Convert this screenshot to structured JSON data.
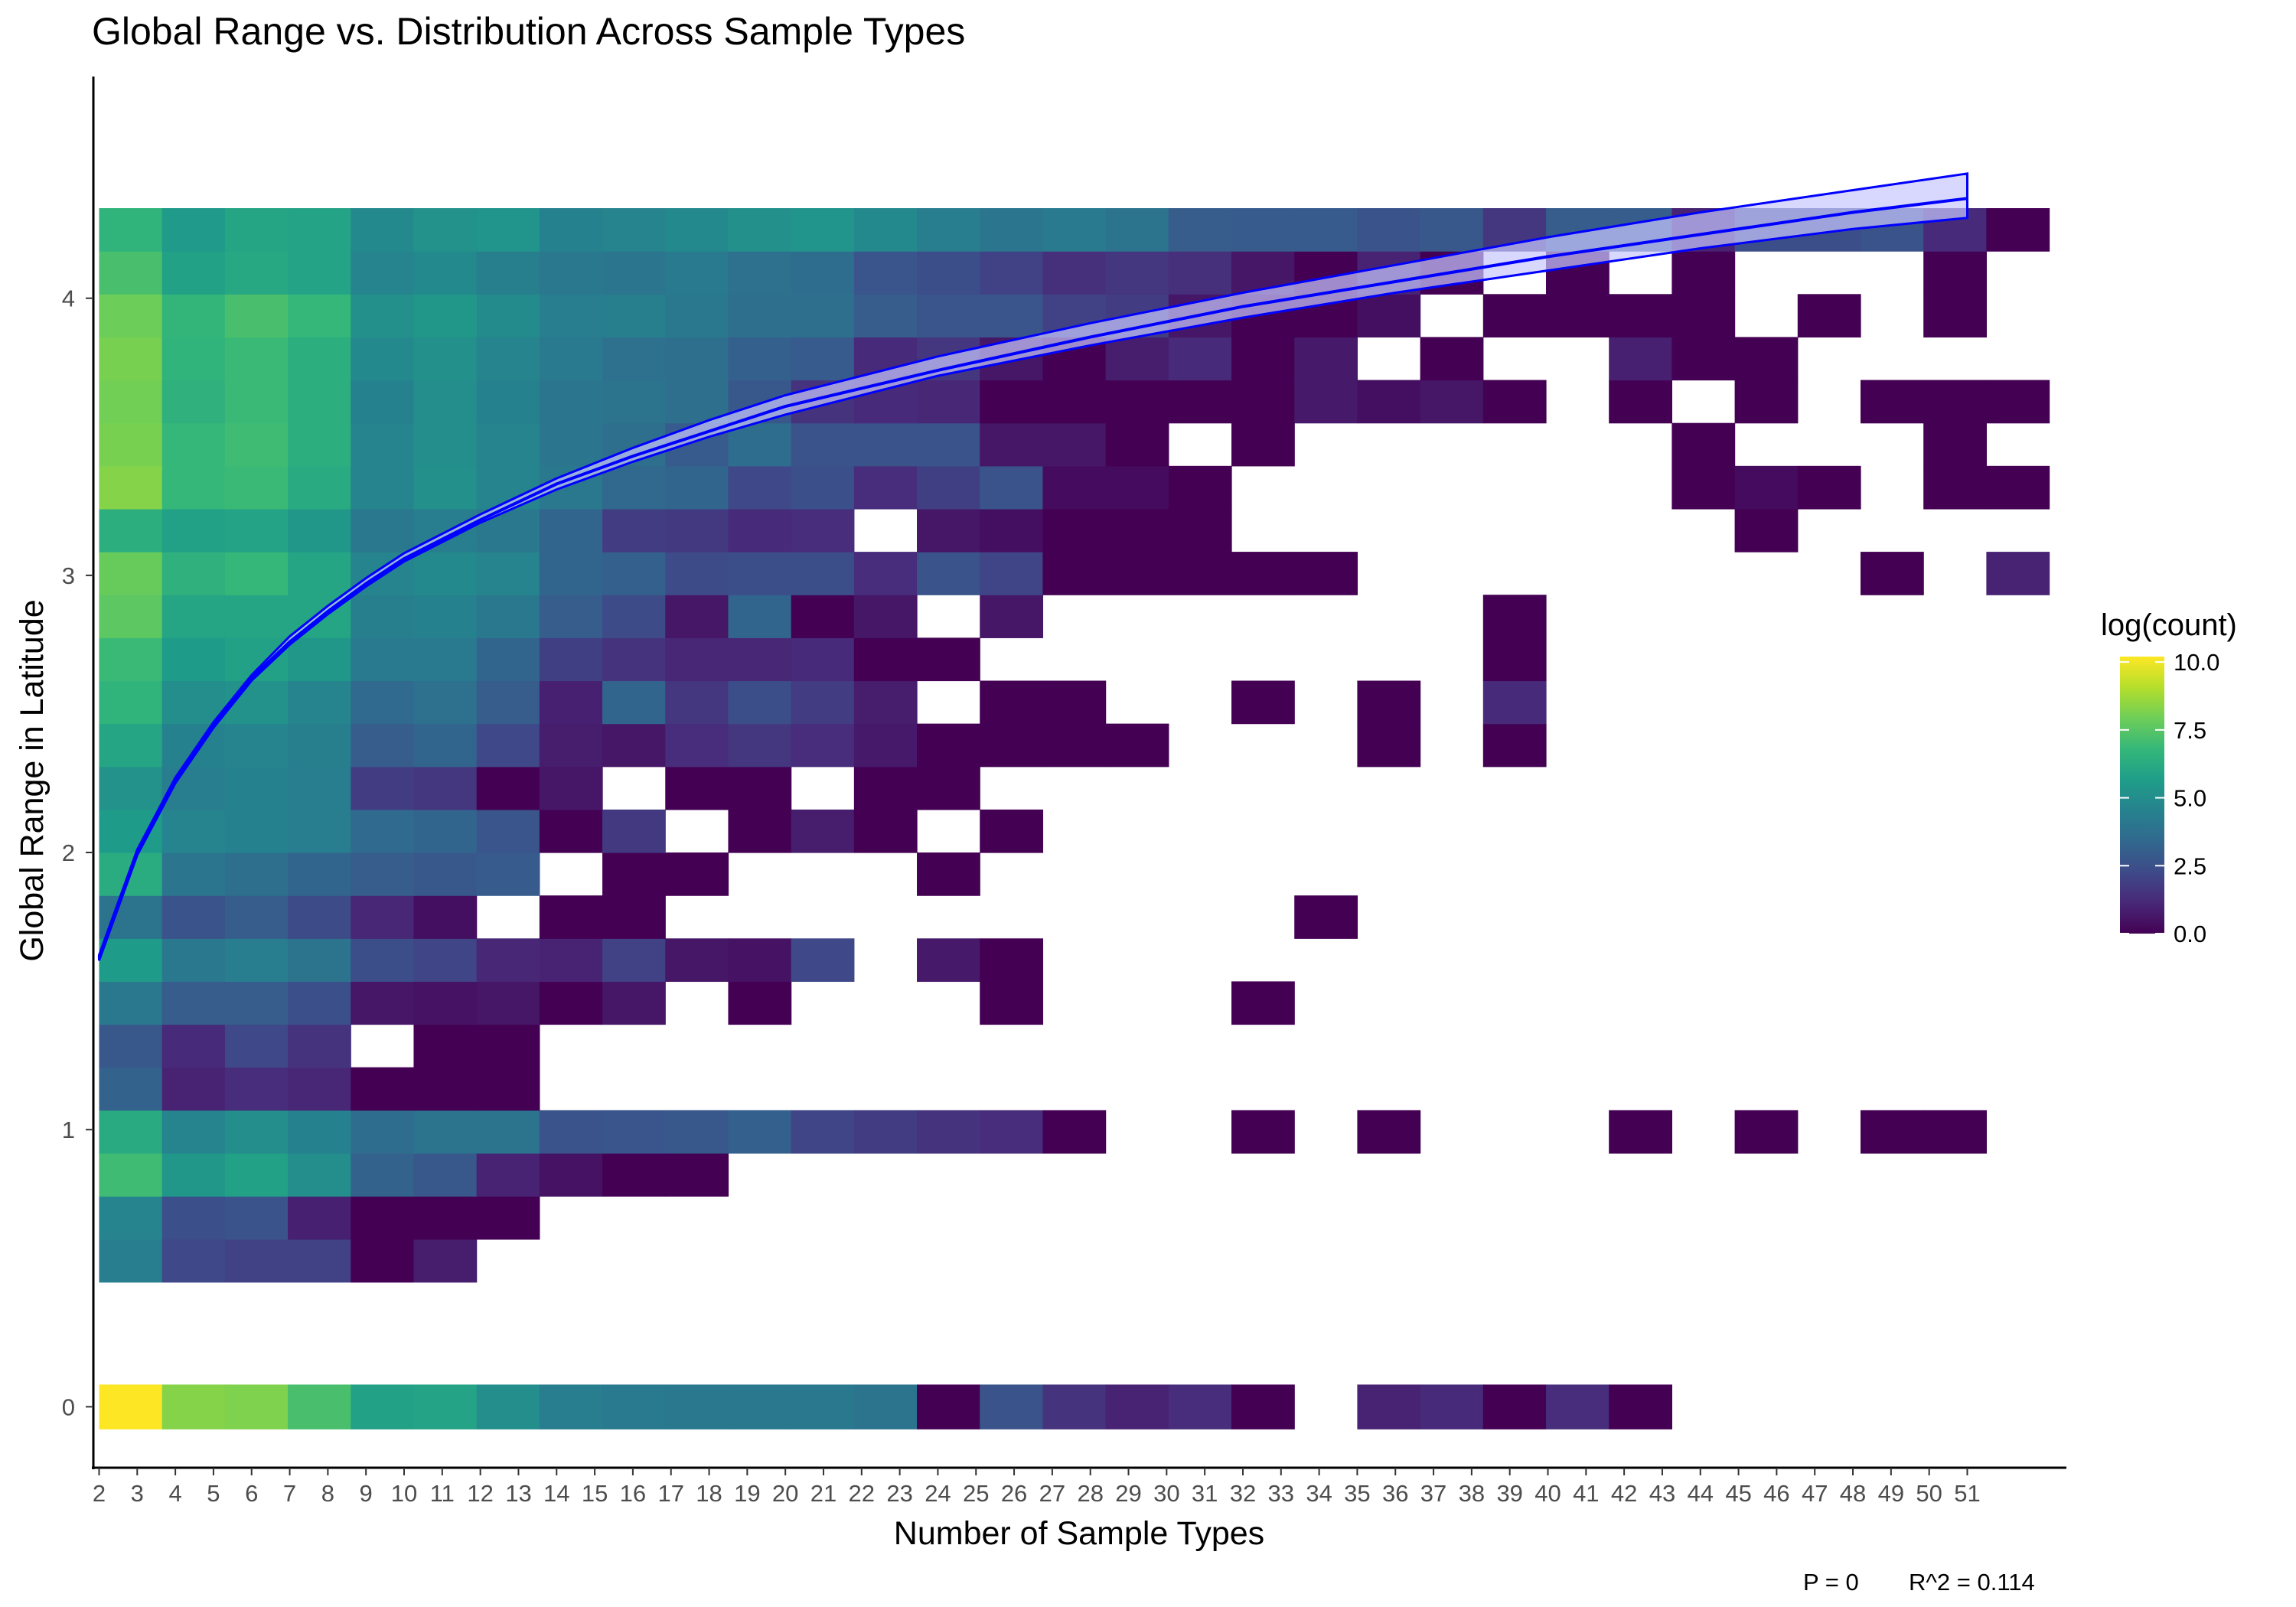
{
  "chart_data": {
    "type": "heatmap",
    "title": "Global Range vs. Distribution Across Sample Types",
    "xlabel": "Number of Sample Types",
    "ylabel": "Global Range in Latitude",
    "x_ticks": [
      2,
      3,
      4,
      5,
      6,
      7,
      8,
      9,
      10,
      11,
      12,
      13,
      14,
      15,
      16,
      17,
      18,
      19,
      20,
      21,
      22,
      23,
      24,
      25,
      26,
      27,
      28,
      29,
      30,
      31,
      32,
      33,
      34,
      35,
      36,
      37,
      38,
      39,
      40,
      41,
      42,
      43,
      44,
      45,
      46,
      47,
      48,
      49,
      50,
      51
    ],
    "y_ticks": [
      0,
      1,
      2,
      3,
      4
    ],
    "xlim": [
      1.85,
      53.6
    ],
    "ylim": [
      -0.22,
      4.8
    ],
    "x_bins": {
      "start": 2,
      "width": 1.65,
      "count": 31
    },
    "y_bins": {
      "start": 0.45,
      "width": 0.155,
      "count": 26,
      "extra_row": {
        "y0": -0.08,
        "y1": 0.08,
        "label": "zero-range bin"
      }
    },
    "color_scale": {
      "name": "viridis",
      "label": "log(count)",
      "min": 0,
      "max": 10.2,
      "ticks": [
        "0.0",
        "2.5",
        "5.0",
        "7.5",
        "10.0"
      ],
      "tick_values": [
        0,
        2.5,
        5.0,
        7.5,
        10.0
      ],
      "colors": [
        "#440154",
        "#482878",
        "#3e4a89",
        "#31688e",
        "#26828e",
        "#1f9e89",
        "#35b779",
        "#6ece58",
        "#b5de2b",
        "#fde725"
      ]
    },
    "grid": false,
    "legend": "right",
    "fit_line": {
      "model": "log",
      "color": "#0000ff",
      "ci_color": "#c8c8ff",
      "x": [
        2,
        3,
        4,
        5,
        6,
        7,
        8,
        9,
        10,
        12,
        14,
        16,
        18,
        20,
        24,
        28,
        32,
        36,
        40,
        44,
        48,
        51
      ],
      "y": [
        1.62,
        2.0,
        2.26,
        2.46,
        2.63,
        2.76,
        2.87,
        2.97,
        3.06,
        3.2,
        3.33,
        3.43,
        3.52,
        3.61,
        3.74,
        3.86,
        3.97,
        4.06,
        4.15,
        4.23,
        4.31,
        4.36
      ],
      "ci_low": [
        1.61,
        1.99,
        2.25,
        2.45,
        2.62,
        2.75,
        2.86,
        2.96,
        3.05,
        3.19,
        3.31,
        3.41,
        3.5,
        3.58,
        3.72,
        3.83,
        3.93,
        4.02,
        4.1,
        4.18,
        4.25,
        4.29
      ],
      "ci_high": [
        1.63,
        2.01,
        2.27,
        2.47,
        2.64,
        2.78,
        2.89,
        2.99,
        3.08,
        3.22,
        3.35,
        3.46,
        3.56,
        3.65,
        3.79,
        3.91,
        4.02,
        4.12,
        4.22,
        4.31,
        4.39,
        4.45
      ]
    },
    "rows": [
      [
        10.2,
        8.3,
        8.2,
        7.2,
        5.8,
        5.9,
        5.0,
        4.3,
        4.2,
        4.1,
        4.1,
        4.1,
        3.9,
        0.0,
        2.6,
        1.5,
        1.0,
        1.3,
        0.0,
        -1,
        1.0,
        1.2,
        0.0,
        1.3,
        0.0,
        -1,
        -1,
        -1,
        -1,
        -1,
        -1
      ],
      [
        4.3,
        2.2,
        2.0,
        2.0,
        0.0,
        0.8,
        -1,
        -1,
        -1,
        -1,
        -1,
        -1,
        -1,
        -1,
        -1,
        -1,
        -1,
        -1,
        -1,
        -1,
        -1,
        -1,
        -1,
        -1,
        -1,
        -1,
        -1,
        -1,
        -1,
        -1,
        -1
      ],
      [
        4.6,
        2.5,
        2.6,
        0.9,
        0.0,
        0.0,
        0.0,
        -1,
        -1,
        -1,
        -1,
        -1,
        -1,
        -1,
        -1,
        -1,
        -1,
        -1,
        -1,
        -1,
        -1,
        -1,
        -1,
        -1,
        -1,
        -1,
        -1,
        -1,
        -1,
        -1,
        -1
      ],
      [
        7.0,
        5.4,
        5.8,
        5.0,
        3.2,
        2.8,
        1.0,
        0.5,
        0.0,
        0.0,
        -1,
        -1,
        -1,
        -1,
        -1,
        -1,
        -1,
        -1,
        -1,
        -1,
        -1,
        -1,
        -1,
        -1,
        -1,
        -1,
        -1,
        -1,
        -1,
        -1,
        -1
      ],
      [
        6.2,
        4.6,
        5.0,
        4.5,
        3.6,
        3.9,
        3.9,
        2.6,
        2.7,
        2.8,
        3.1,
        2.1,
        1.8,
        1.5,
        1.3,
        0.0,
        -1,
        -1,
        0.0,
        -1,
        0.0,
        -1,
        -1,
        -1,
        0.0,
        -1,
        0.0,
        -1,
        0.0,
        0.0,
        -1
      ],
      [
        3.2,
        1.0,
        1.3,
        1.1,
        0.0,
        0.0,
        0.0,
        -1,
        -1,
        -1,
        -1,
        -1,
        -1,
        -1,
        -1,
        -1,
        -1,
        -1,
        -1,
        -1,
        -1,
        -1,
        -1,
        -1,
        -1,
        -1,
        -1,
        -1,
        -1,
        -1,
        -1
      ],
      [
        2.8,
        1.2,
        2.2,
        1.5,
        -1,
        0.0,
        0.0,
        -1,
        -1,
        -1,
        -1,
        -1,
        -1,
        -1,
        -1,
        -1,
        -1,
        -1,
        -1,
        -1,
        -1,
        -1,
        -1,
        -1,
        -1,
        -1,
        -1,
        -1,
        -1,
        -1,
        -1
      ],
      [
        4.1,
        3.0,
        3.0,
        2.5,
        0.6,
        0.5,
        0.6,
        0.0,
        0.6,
        -1,
        0.0,
        -1,
        -1,
        -1,
        0.0,
        -1,
        -1,
        -1,
        0.0,
        -1,
        -1,
        -1,
        -1,
        -1,
        -1,
        -1,
        -1,
        -1,
        -1,
        -1,
        -1
      ],
      [
        5.6,
        4.1,
        4.3,
        3.9,
        2.4,
        2.1,
        1.1,
        1.0,
        2.0,
        0.6,
        0.5,
        2.2,
        -1,
        0.7,
        0.0,
        -1,
        -1,
        -1,
        -1,
        -1,
        -1,
        -1,
        -1,
        -1,
        -1,
        -1,
        -1,
        -1,
        -1,
        -1,
        -1
      ],
      [
        3.9,
        2.6,
        3.0,
        2.3,
        1.1,
        0.4,
        -1,
        0.0,
        0.0,
        -1,
        -1,
        -1,
        -1,
        -1,
        -1,
        -1,
        -1,
        -1,
        -1,
        0.0,
        -1,
        -1,
        -1,
        -1,
        -1,
        -1,
        -1,
        -1,
        -1,
        -1,
        -1
      ],
      [
        6.3,
        4.0,
        3.7,
        3.3,
        3.0,
        2.8,
        2.9,
        -1,
        0.0,
        0.0,
        -1,
        -1,
        -1,
        0.0,
        -1,
        -1,
        -1,
        -1,
        -1,
        -1,
        -1,
        -1,
        -1,
        -1,
        -1,
        -1,
        -1,
        -1,
        -1,
        -1,
        -1
      ],
      [
        5.6,
        4.6,
        4.5,
        4.3,
        3.5,
        3.3,
        2.7,
        0.0,
        1.7,
        -1,
        0.0,
        0.8,
        0.0,
        -1,
        0.0,
        -1,
        -1,
        -1,
        -1,
        -1,
        -1,
        -1,
        -1,
        -1,
        -1,
        -1,
        -1,
        -1,
        -1,
        -1,
        -1
      ],
      [
        5.2,
        4.3,
        4.5,
        4.3,
        1.8,
        1.6,
        0.0,
        0.6,
        -1,
        0.0,
        0.0,
        -1,
        0.0,
        0.0,
        -1,
        -1,
        -1,
        -1,
        -1,
        -1,
        -1,
        -1,
        -1,
        -1,
        -1,
        -1,
        -1,
        -1,
        -1,
        -1,
        -1
      ],
      [
        6.0,
        4.5,
        4.6,
        4.4,
        3.0,
        3.3,
        2.2,
        0.8,
        0.6,
        1.3,
        1.6,
        1.3,
        0.7,
        0.0,
        0.0,
        0.0,
        0.0,
        -1,
        -1,
        -1,
        0.0,
        -1,
        0.0,
        -1,
        -1,
        -1,
        -1,
        -1,
        -1,
        -1,
        -1
      ],
      [
        6.6,
        5.0,
        5.2,
        4.6,
        3.5,
        3.8,
        3.0,
        0.9,
        3.3,
        1.6,
        2.4,
        1.8,
        0.8,
        -1,
        0.0,
        0.0,
        -1,
        -1,
        0.0,
        -1,
        0.0,
        -1,
        1.2,
        -1,
        -1,
        -1,
        -1,
        -1,
        -1,
        -1,
        -1
      ],
      [
        6.9,
        5.6,
        5.8,
        5.4,
        4.2,
        4.2,
        3.3,
        1.9,
        1.5,
        1.1,
        1.1,
        1.2,
        0.0,
        0.0,
        -1,
        -1,
        -1,
        -1,
        -1,
        -1,
        -1,
        -1,
        0.0,
        -1,
        -1,
        -1,
        -1,
        -1,
        -1,
        -1,
        -1
      ],
      [
        7.6,
        6.0,
        6.0,
        6.0,
        4.4,
        4.5,
        4.1,
        3.0,
        2.3,
        0.6,
        3.3,
        0.0,
        0.6,
        -1,
        0.6,
        -1,
        -1,
        -1,
        -1,
        -1,
        -1,
        -1,
        0.0,
        -1,
        -1,
        -1,
        -1,
        -1,
        -1,
        -1,
        -1
      ],
      [
        7.8,
        6.5,
        6.8,
        6.0,
        4.6,
        4.8,
        4.6,
        3.3,
        3.1,
        2.3,
        2.4,
        2.4,
        1.3,
        2.6,
        2.1,
        0.0,
        0.0,
        0.0,
        0.0,
        0.0,
        -1,
        -1,
        -1,
        -1,
        -1,
        -1,
        -1,
        -1,
        0.0,
        -1,
        1.0
      ],
      [
        6.4,
        5.8,
        5.9,
        5.4,
        4.1,
        4.3,
        4.1,
        3.3,
        1.8,
        1.7,
        1.2,
        1.3,
        -1,
        0.6,
        0.4,
        0.0,
        0.0,
        0.0,
        -1,
        -1,
        -1,
        -1,
        -1,
        -1,
        -1,
        -1,
        0.0,
        -1,
        -1,
        -1,
        -1
      ],
      [
        8.3,
        6.8,
        6.9,
        6.2,
        4.6,
        5.1,
        4.6,
        4.1,
        3.4,
        3.3,
        2.2,
        2.5,
        1.3,
        1.9,
        2.6,
        0.3,
        0.3,
        0.0,
        -1,
        -1,
        -1,
        -1,
        -1,
        -1,
        -1,
        0.0,
        0.3,
        0.0,
        -1,
        0.0,
        0.0
      ],
      [
        8.1,
        6.8,
        7.0,
        6.4,
        4.6,
        5.0,
        4.6,
        4.0,
        3.7,
        2.9,
        3.6,
        2.6,
        2.6,
        2.6,
        0.6,
        0.6,
        0.0,
        -1,
        0.0,
        -1,
        -1,
        -1,
        -1,
        -1,
        -1,
        0.0,
        -1,
        -1,
        -1,
        0.0,
        -1
      ],
      [
        8.0,
        6.5,
        6.9,
        6.4,
        4.5,
        5.0,
        4.5,
        4.0,
        3.9,
        3.7,
        2.8,
        1.5,
        1.2,
        1.1,
        0.0,
        0.0,
        0.0,
        0.0,
        0.0,
        0.7,
        0.4,
        0.6,
        0.0,
        -1,
        0.0,
        -1,
        0.0,
        -1,
        0.0,
        0.0,
        0.0
      ],
      [
        8.1,
        6.6,
        6.9,
        6.4,
        4.8,
        5.1,
        4.6,
        4.2,
        3.8,
        3.7,
        3.1,
        2.9,
        1.2,
        1.6,
        0.6,
        0.0,
        0.8,
        1.2,
        0.0,
        0.7,
        -1,
        0.0,
        -1,
        -1,
        0.9,
        0.0,
        0.0,
        -1,
        -1,
        -1,
        -1
      ],
      [
        7.9,
        6.7,
        7.2,
        6.8,
        5.1,
        5.4,
        4.9,
        4.3,
        4.4,
        4.1,
        3.7,
        3.7,
        3.0,
        2.7,
        2.7,
        2.0,
        1.8,
        0.6,
        0.0,
        0.0,
        0.4,
        -1,
        0.0,
        0.0,
        0.0,
        0.0,
        -1,
        0.0,
        -1,
        0.0,
        -1
      ],
      [
        7.2,
        5.8,
        6.1,
        5.9,
        4.6,
        4.8,
        4.4,
        4.1,
        4.0,
        4.2,
        3.8,
        3.6,
        2.7,
        2.4,
        2.0,
        1.4,
        1.6,
        1.4,
        0.6,
        0.0,
        1.0,
        0.0,
        -1,
        0.0,
        -1,
        0.0,
        -1,
        -1,
        -1,
        0.0,
        -1
      ],
      [
        6.6,
        5.5,
        6.0,
        5.9,
        4.8,
        5.2,
        5.3,
        4.5,
        4.6,
        4.8,
        5.1,
        5.3,
        4.8,
        4.3,
        4.0,
        4.2,
        3.9,
        3.0,
        2.9,
        2.9,
        2.6,
        2.8,
        1.6,
        3.0,
        3.0,
        1.0,
        2.4,
        2.4,
        2.6,
        1.2,
        0.0
      ]
    ]
  },
  "annotations": {
    "p_value": "P = 0",
    "r_squared": "R^2 =  0.114"
  }
}
